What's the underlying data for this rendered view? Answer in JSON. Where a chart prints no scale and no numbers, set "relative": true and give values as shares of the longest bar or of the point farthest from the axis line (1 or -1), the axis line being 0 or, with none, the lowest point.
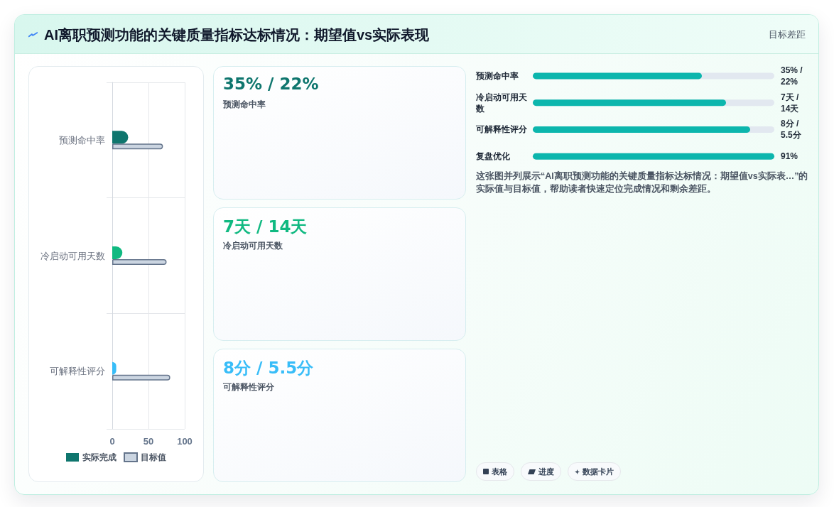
{
  "chart_data": [
    {
      "type": "other",
      "title": "AI离职预测功能的关键质量指标达标情况：期望值vs实际表现",
      "subtitle": "目标差距"
    },
    {
      "type": "bar",
      "orientation": "horizontal",
      "categories": [
        "预测命中率",
        "冷启动可用天数",
        "可解释性评分"
      ],
      "series": [
        {
          "name": "实际完成",
          "color": "#0f766e",
          "colors": [
            "#0f766e",
            "#10b981",
            "#38bdf8"
          ],
          "values": [
            22,
            14,
            5.5
          ]
        },
        {
          "name": "目标值",
          "color": "#cbd5e1",
          "values": [
            70,
            75,
            80
          ]
        }
      ],
      "xlim": [
        0,
        100
      ],
      "xticks": [
        0,
        50,
        100
      ],
      "grid": true,
      "legend": "bottom"
    },
    {
      "type": "other",
      "title": "35% / 22%",
      "subtitle": "预测命中率",
      "color": "#0f766e"
    },
    {
      "type": "other",
      "title": "7天 / 14天",
      "subtitle": "冷启动可用天数",
      "color": "#10b981"
    },
    {
      "type": "other",
      "title": "8分 / 5.5分",
      "subtitle": "可解释性评分",
      "color": "#38bdf8"
    },
    {
      "type": "bar",
      "orientation": "horizontal",
      "relative": true,
      "categories": [
        "预测命中率",
        "冷启动可用天数",
        "可解释性评分",
        "复盘优化"
      ],
      "values": [
        0.7,
        0.8,
        0.9,
        1
      ],
      "color": "#0cb6ad",
      "annotations": [
        "这张图并列展示“AI离职预测功能的关键质量指标达标情况：期望值vs实际表…”的实际值与目标值，帮助读者快速定位完成情况和剩余差距。",
        "表格",
        "进度",
        "数据卡片"
      ]
    },
    {
      "type": "other",
      "annotations": [
        "35% / 22%",
        "7天 / 14天",
        "8分 / 5.5分",
        "91%"
      ]
    }
  ]
}
